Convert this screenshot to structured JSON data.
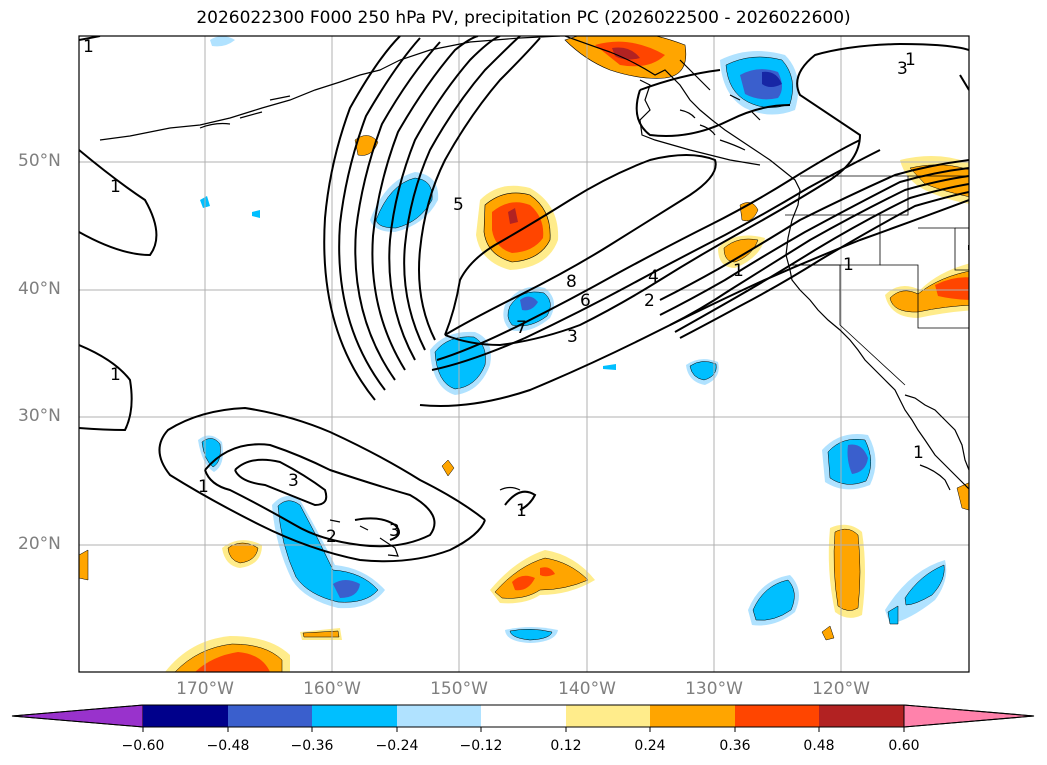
{
  "title": "2026022300 F000 250 hPa PV, precipitation PC (2026022500 - 2026022600)",
  "lat_labels": [
    "50°N",
    "40°N",
    "30°N",
    "20°N"
  ],
  "lon_labels": [
    "170°W",
    "160°W",
    "150°W",
    "140°W",
    "130°W",
    "120°W"
  ],
  "colorbar": {
    "ticks": [
      "−0.60",
      "−0.48",
      "−0.36",
      "−0.24",
      "−0.12",
      "0.12",
      "0.24",
      "0.36",
      "0.48",
      "0.60"
    ],
    "colors": [
      "#9932cc",
      "#00008b",
      "#3a5fcd",
      "#00bfff",
      "#b0e2ff",
      "#ffffff",
      "#ffec8b",
      "#ffa500",
      "#ff4500",
      "#b22222",
      "#ff82ab"
    ]
  },
  "contour_labels": [
    "1",
    "1",
    "1",
    "1",
    "1",
    "1",
    "1",
    "1",
    "1",
    "2",
    "2",
    "3",
    "3",
    "3",
    "3",
    "4",
    "5",
    "6",
    "7",
    "8"
  ],
  "colors": {
    "grid": "#b0b0b0",
    "contour": "#000000",
    "axis_label": "#7f7f7f"
  }
}
